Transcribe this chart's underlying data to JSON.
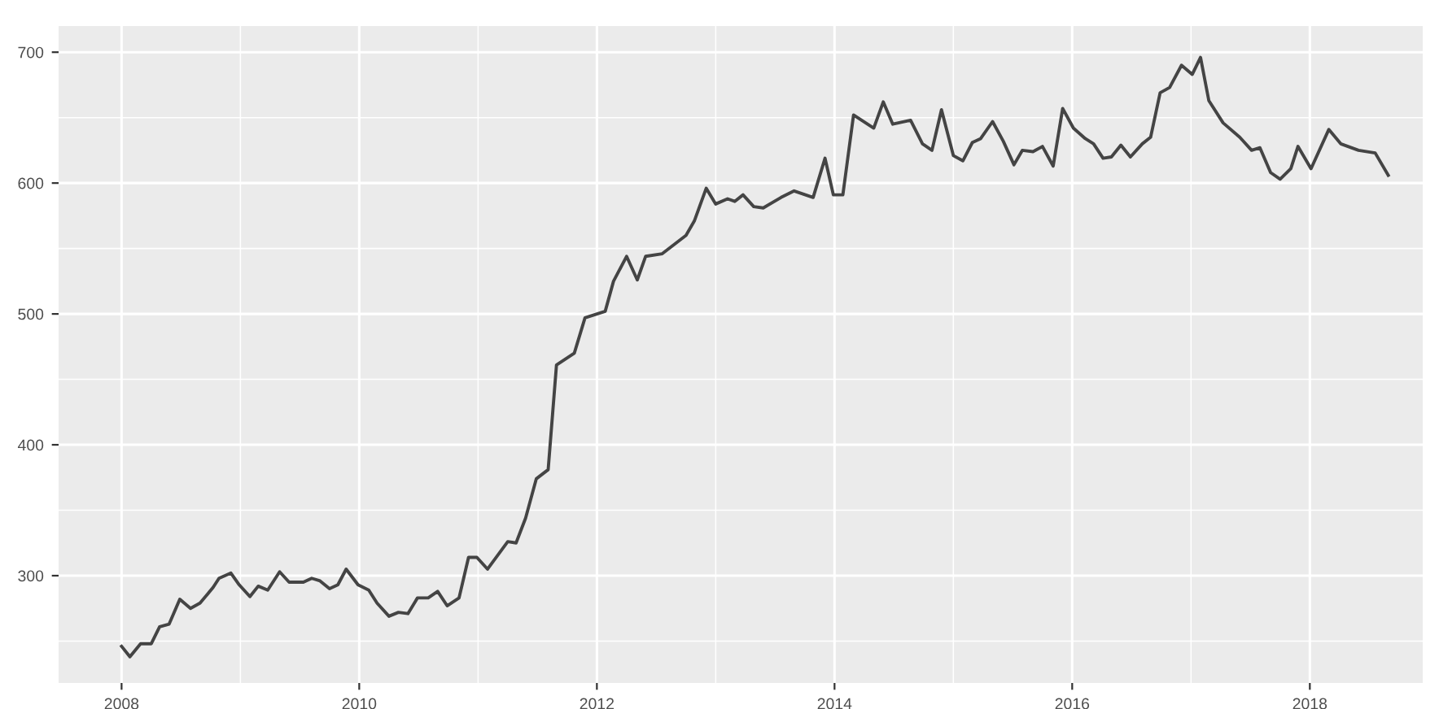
{
  "chart_data": {
    "type": "line",
    "xlim": [
      2007.47,
      2018.95
    ],
    "ylim": [
      218,
      720
    ],
    "xticks": [
      2008,
      {
        "value": 2009,
        "label": null
      },
      2010,
      {
        "value": 2011,
        "label": null
      },
      2012,
      {
        "value": 2013,
        "label": null
      },
      2014,
      {
        "value": 2015,
        "label": null
      },
      2016,
      {
        "value": 2017,
        "label": null
      },
      2018
    ],
    "yticks": [
      {
        "value": 250,
        "label": null
      },
      300,
      {
        "value": 350,
        "label": null
      },
      400,
      {
        "value": 450,
        "label": null
      },
      500,
      {
        "value": 550,
        "label": null
      },
      600,
      {
        "value": 650,
        "label": null
      },
      700
    ],
    "grid": true,
    "marker": "none",
    "line_style": "solid",
    "series": [
      {
        "color": "#444444",
        "x": [
          2008.0,
          2008.07,
          2008.16,
          2008.25,
          2008.32,
          2008.4,
          2008.49,
          2008.58,
          2008.66,
          2008.77,
          2008.82,
          2008.92,
          2008.99,
          2009.08,
          2009.15,
          2009.23,
          2009.33,
          2009.41,
          2009.53,
          2009.6,
          2009.67,
          2009.75,
          2009.82,
          2009.89,
          2009.99,
          2010.08,
          2010.15,
          2010.25,
          2010.33,
          2010.41,
          2010.49,
          2010.58,
          2010.66,
          2010.74,
          2010.84,
          2010.92,
          2010.99,
          2011.08,
          2011.25,
          2011.32,
          2011.4,
          2011.49,
          2011.59,
          2011.66,
          2011.81,
          2011.9,
          2012.07,
          2012.14,
          2012.25,
          2012.34,
          2012.41,
          2012.55,
          2012.75,
          2012.82,
          2012.92,
          2013.0,
          2013.1,
          2013.16,
          2013.23,
          2013.32,
          2013.4,
          2013.55,
          2013.66,
          2013.82,
          2013.92,
          2013.99,
          2014.07,
          2014.16,
          2014.33,
          2014.41,
          2014.49,
          2014.64,
          2014.74,
          2014.82,
          2014.9,
          2015.0,
          2015.08,
          2015.16,
          2015.23,
          2015.33,
          2015.42,
          2015.51,
          2015.58,
          2015.67,
          2015.75,
          2015.84,
          2015.92,
          2016.01,
          2016.11,
          2016.18,
          2016.26,
          2016.33,
          2016.41,
          2016.49,
          2016.59,
          2016.66,
          2016.74,
          2016.82,
          2016.92,
          2017.01,
          2017.08,
          2017.15,
          2017.27,
          2017.41,
          2017.51,
          2017.58,
          2017.67,
          2017.75,
          2017.84,
          2017.9,
          2018.01,
          2018.16,
          2018.26,
          2018.41,
          2018.55,
          2018.66
        ],
        "values": [
          246,
          238,
          248,
          248,
          261,
          263,
          282,
          275,
          279,
          291,
          298,
          302,
          293,
          284,
          292,
          289,
          303,
          295,
          295,
          298,
          296,
          290,
          293,
          305,
          293,
          289,
          279,
          269,
          272,
          271,
          283,
          283,
          288,
          277,
          283,
          314,
          314,
          305,
          326,
          325,
          344,
          374,
          381,
          461,
          470,
          497,
          502,
          525,
          544,
          526,
          544,
          546,
          560,
          571,
          596,
          584,
          588,
          586,
          591,
          582,
          581,
          589,
          594,
          589,
          619,
          591,
          591,
          652,
          642,
          662,
          645,
          648,
          630,
          625,
          656,
          621,
          617,
          631,
          634,
          647,
          632,
          614,
          625,
          624,
          628,
          613,
          657,
          642,
          634,
          630,
          619,
          620,
          629,
          620,
          630,
          635,
          669,
          673,
          690,
          683,
          696,
          663,
          646,
          635,
          625,
          627,
          608,
          603,
          611,
          628,
          611,
          641,
          630,
          625,
          623,
          606
        ]
      }
    ]
  }
}
